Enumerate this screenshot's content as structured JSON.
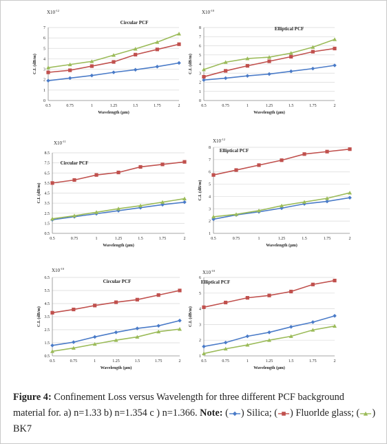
{
  "colors": {
    "silica": "#4a7bc8",
    "fluoride": "#c0504d",
    "bk7": "#9bbb59",
    "grid": "#d9d9d9",
    "axis": "#888888"
  },
  "caption": {
    "figure_label": "Figure 4:",
    "text": " Confinement Loss versus Wavelength for three different PCF background material for. a) n=1.33  b) n=1.354  c ) n=1.366. ",
    "note_label": "Note:",
    "open_paren": " (",
    "silica_label": ") Silica; (",
    "fluoride_label": ") Fluorlde glass; (",
    "bk7_label": ") BK7"
  },
  "chart_data": [
    {
      "type": "line",
      "title": "Circular PCF",
      "exponent_label": "X10-12",
      "xlabel": "Wavelength (μm)",
      "ylabel": "C.L (dB/m)",
      "x": [
        0.5,
        0.75,
        1,
        1.25,
        1.5,
        1.75,
        2
      ],
      "xlim": [
        0.5,
        2
      ],
      "x_tick_labels": [
        "0.5",
        "0.75",
        "1",
        "1.25",
        "1.5",
        "1.75",
        "2"
      ],
      "ylim": [
        0,
        7
      ],
      "y_ticks": [
        0,
        1,
        2,
        3,
        4,
        5,
        6,
        7
      ],
      "y_tick_labels": [
        "0",
        "1",
        "2",
        "3",
        "4",
        "5",
        "6",
        "7"
      ],
      "grid": true,
      "legend": "none",
      "series": [
        {
          "values": [
            1.9,
            2.15,
            2.4,
            2.7,
            2.95,
            3.25,
            3.6
          ]
        },
        {
          "values": [
            2.7,
            2.9,
            3.3,
            3.7,
            4.4,
            4.9,
            5.4
          ]
        },
        {
          "values": [
            3.15,
            3.45,
            3.75,
            4.35,
            4.95,
            5.6,
            6.4
          ]
        }
      ]
    },
    {
      "type": "line",
      "title": "Elliptical PCF",
      "exponent_label": "X10-10",
      "xlabel": "Wavelength (μm)",
      "ylabel": "C.L (dB/m)",
      "x": [
        0.5,
        0.75,
        1,
        1.25,
        1.5,
        1.75,
        2
      ],
      "xlim": [
        0.5,
        2
      ],
      "x_tick_labels": [
        "0.5",
        "0.75",
        "1",
        "1.25",
        "1.5",
        "1.75",
        "2"
      ],
      "ylim": [
        0,
        8
      ],
      "y_ticks": [
        0,
        1,
        2,
        3,
        4,
        5,
        6,
        7,
        8
      ],
      "y_tick_labels": [
        "0",
        "1",
        "2",
        "3",
        "4",
        "5",
        "6",
        "7",
        "8"
      ],
      "grid": true,
      "legend": "none",
      "series": [
        {
          "values": [
            2.25,
            2.45,
            2.7,
            2.9,
            3.2,
            3.5,
            3.85
          ]
        },
        {
          "values": [
            2.6,
            3.25,
            3.8,
            4.3,
            4.8,
            5.35,
            5.7
          ]
        },
        {
          "values": [
            3.4,
            4.2,
            4.6,
            4.75,
            5.2,
            5.85,
            6.7
          ]
        }
      ]
    },
    {
      "type": "line",
      "title": "Circular PCF",
      "exponent_label": "X10-11",
      "xlabel": "Wavelength (μm)",
      "ylabel": "C.L (dB/m)",
      "x": [
        0.5,
        0.75,
        1,
        1.25,
        1.5,
        1.75,
        2
      ],
      "xlim": [
        0.5,
        2
      ],
      "x_tick_labels": [
        "0.5",
        "0.75",
        "1",
        "1.25",
        "1.5",
        "1.75",
        "2"
      ],
      "ylim": [
        0.5,
        8.5
      ],
      "y_ticks": [
        0.5,
        1.5,
        2.5,
        3.5,
        4.5,
        5.5,
        6.5,
        7.5,
        8.5
      ],
      "y_tick_labels": [
        "0.5",
        "1.5",
        "2.5",
        "3.5",
        "4.5",
        "5.5",
        "6.5",
        "7.5",
        "8.5"
      ],
      "grid": true,
      "legend": "none",
      "series": [
        {
          "values": [
            1.85,
            2.15,
            2.45,
            2.75,
            3.05,
            3.35,
            3.6
          ]
        },
        {
          "values": [
            5.5,
            5.8,
            6.3,
            6.55,
            7.1,
            7.35,
            7.6
          ]
        },
        {
          "values": [
            1.95,
            2.25,
            2.6,
            2.95,
            3.25,
            3.6,
            3.95
          ]
        }
      ]
    },
    {
      "type": "line",
      "title": "Elliptical PCF",
      "exponent_label": "X10-12",
      "xlabel": "Wavelength (μm)",
      "ylabel": "C.L (dB/m)",
      "x": [
        0.5,
        0.75,
        1,
        1.25,
        1.5,
        1.75,
        2
      ],
      "xlim": [
        0.5,
        2
      ],
      "x_tick_labels": [
        "0.5",
        "0.75",
        "1",
        "1.25",
        "1.5",
        "1.75",
        "2"
      ],
      "ylim": [
        1,
        8
      ],
      "y_ticks": [
        1,
        2,
        3,
        4,
        5,
        6,
        7,
        8
      ],
      "y_tick_labels": [
        "1",
        "2",
        "3",
        "4",
        "5",
        "6",
        "7",
        "8"
      ],
      "grid": true,
      "legend": "none",
      "series": [
        {
          "values": [
            2.15,
            2.5,
            2.75,
            3.05,
            3.4,
            3.6,
            3.9
          ]
        },
        {
          "values": [
            5.75,
            6.15,
            6.55,
            6.95,
            7.45,
            7.65,
            7.85
          ]
        },
        {
          "values": [
            2.35,
            2.55,
            2.85,
            3.25,
            3.55,
            3.85,
            4.3
          ]
        }
      ]
    },
    {
      "type": "line",
      "title": "Circular PCF",
      "exponent_label": "X10-10",
      "xlabel": "Wavelength (μm)",
      "ylabel": "C.L (dB/m)",
      "x": [
        0.5,
        0.75,
        1,
        1.25,
        1.5,
        1.75,
        2
      ],
      "xlim": [
        0.5,
        2
      ],
      "x_tick_labels": [
        "0.5",
        "0.75",
        "1",
        "1.25",
        "1.5",
        "1.75",
        "2"
      ],
      "ylim": [
        0.5,
        6.5
      ],
      "y_ticks": [
        0.5,
        1.5,
        2.5,
        3.5,
        4.5,
        5.5,
        6.5
      ],
      "y_tick_labels": [
        "0.5",
        "1.5",
        "2.5",
        "3.5",
        "4.5",
        "5.5",
        "6.5"
      ],
      "grid": true,
      "legend": "none",
      "series": [
        {
          "values": [
            1.3,
            1.55,
            1.95,
            2.3,
            2.6,
            2.8,
            3.2
          ]
        },
        {
          "values": [
            3.8,
            4.05,
            4.35,
            4.6,
            4.8,
            5.15,
            5.5
          ]
        },
        {
          "values": [
            0.85,
            1.1,
            1.4,
            1.7,
            1.95,
            2.35,
            2.55
          ]
        }
      ]
    },
    {
      "type": "line",
      "title": "Elliptical PCF",
      "exponent_label": "X10-10",
      "xlabel": "Wavelength (μm)",
      "ylabel": "C.L (dB/m)",
      "x": [
        0.5,
        0.75,
        1,
        1.25,
        1.5,
        1.75,
        2
      ],
      "xlim": [
        0.5,
        2
      ],
      "x_tick_labels": [
        "0.5",
        "0.75",
        "1",
        "1.25",
        "1.5",
        "1.75",
        "2"
      ],
      "ylim": [
        1,
        6
      ],
      "y_ticks": [
        1,
        2,
        3,
        4,
        5,
        6
      ],
      "y_tick_labels": [
        "1",
        "2",
        "3",
        "4",
        "5",
        "6"
      ],
      "grid": true,
      "legend": "none",
      "series": [
        {
          "values": [
            1.6,
            1.85,
            2.25,
            2.5,
            2.85,
            3.15,
            3.55
          ]
        },
        {
          "values": [
            4.1,
            4.4,
            4.7,
            4.85,
            5.1,
            5.55,
            5.8
          ]
        },
        {
          "values": [
            1.15,
            1.45,
            1.7,
            2.0,
            2.25,
            2.65,
            2.9
          ]
        }
      ]
    }
  ]
}
